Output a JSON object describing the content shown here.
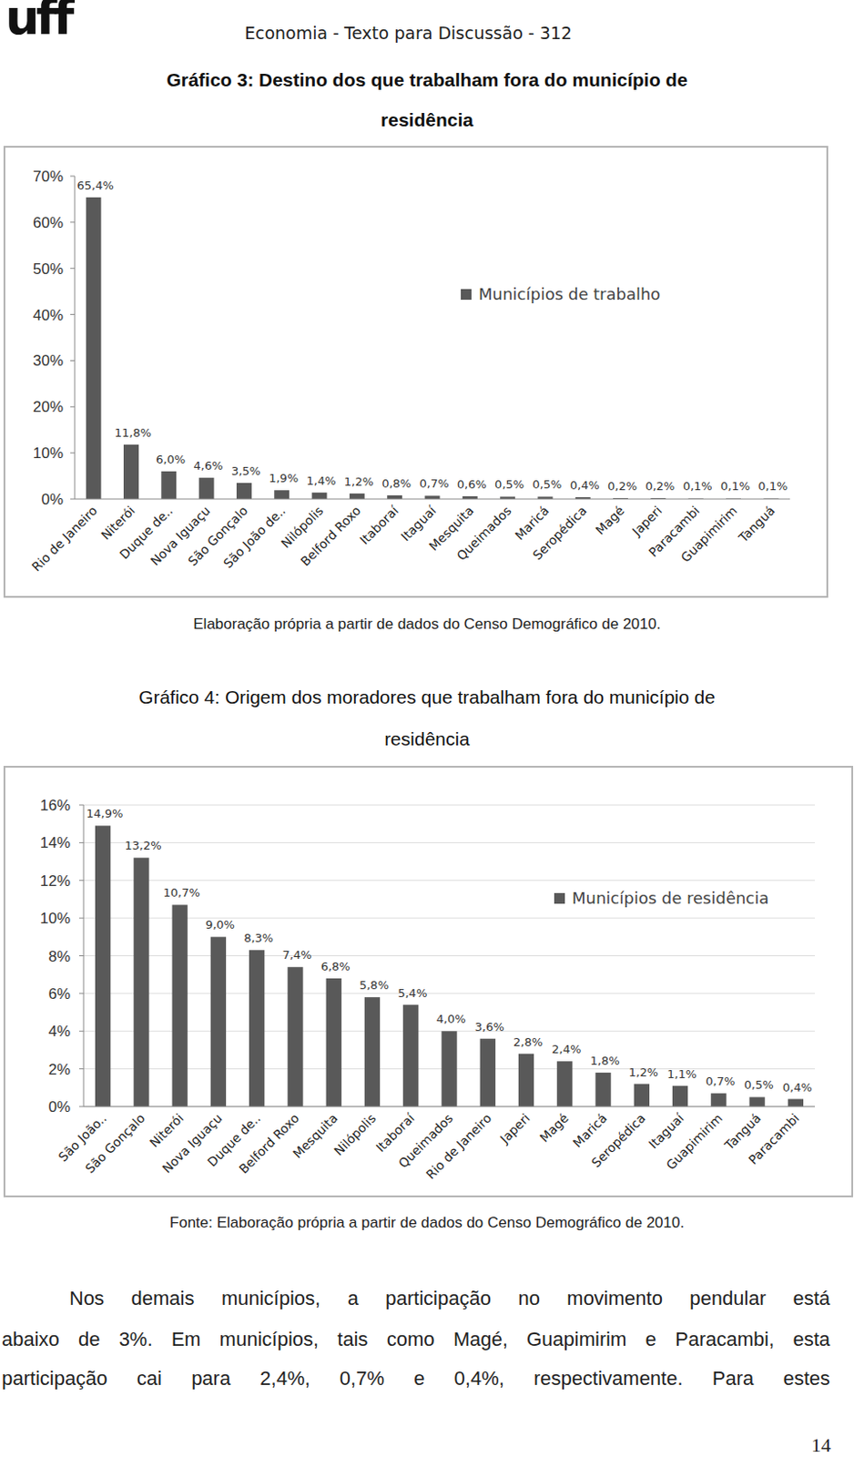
{
  "header": {
    "logo": "uff",
    "text": "Economia - Texto para Discussão - 312"
  },
  "chart_data": [
    {
      "type": "bar",
      "title": [
        "Gráfico 3: Destino dos que trabalham fora do município de",
        "residência"
      ],
      "source": "Elaboração própria a partir de dados do Censo Demográfico de 2010.",
      "categories": [
        "Rio de Janeiro",
        "Niterói",
        "Duque de..",
        "Nova Iguaçu",
        "São Gonçalo",
        "São João de..",
        "Nilópolis",
        "Belford Roxo",
        "Itaboraí",
        "Itaguaí",
        "Mesquita",
        "Queimados",
        "Maricá",
        "Seropédica",
        "Magé",
        "Japeri",
        "Paracambi",
        "Guapimirim",
        "Tanguá"
      ],
      "series": [
        {
          "name": "Municípios de trabalho",
          "color": "#595959",
          "values": [
            65.4,
            11.8,
            6.0,
            4.6,
            3.5,
            1.9,
            1.4,
            1.2,
            0.8,
            0.7,
            0.6,
            0.5,
            0.5,
            0.4,
            0.2,
            0.2,
            0.1,
            0.1,
            0.1
          ],
          "value_labels": [
            "65,4%",
            "11,8%",
            "6,0%",
            "4,6%",
            "3,5%",
            "1,9%",
            "1,4%",
            "1,2%",
            "0,8%",
            "0,7%",
            "0,6%",
            "0,5%",
            "0,5%",
            "0,4%",
            "0,2%",
            "0,2%",
            "0,1%",
            "0,1%",
            "0,1%"
          ]
        }
      ],
      "ylim": [
        0,
        70
      ],
      "yticks": [
        {
          "value": 0,
          "label": "0%"
        },
        {
          "value": 10,
          "label": "10%"
        },
        {
          "value": 20,
          "label": "20%"
        },
        {
          "value": 30,
          "label": "30%"
        },
        {
          "value": 40,
          "label": "40%"
        },
        {
          "value": 50,
          "label": "50%"
        },
        {
          "value": 60,
          "label": "60%"
        },
        {
          "value": 70,
          "label": "70%"
        }
      ],
      "grid": false,
      "legend": "right",
      "data_labels": true
    },
    {
      "type": "bar",
      "title": [
        "Gráfico 4: Origem dos moradores que trabalham fora do município de",
        "residência"
      ],
      "source": "Fonte: Elaboração própria a partir de dados do Censo Demográfico de 2010.",
      "categories": [
        "São João..",
        "São Gonçalo",
        "Niterói",
        "Nova Iguaçu",
        "Duque de..",
        "Belford Roxo",
        "Mesquita",
        "Nilópolis",
        "Itaboraí",
        "Queimados",
        "Rio de Janeiro",
        "Japeri",
        "Magé",
        "Maricá",
        "Seropédica",
        "Itaguaí",
        "Guapimirim",
        "Tanguá",
        "Paracambi"
      ],
      "series": [
        {
          "name": "Municípios de residência",
          "color": "#595959",
          "values": [
            14.9,
            13.2,
            10.7,
            9.0,
            8.3,
            7.4,
            6.8,
            5.8,
            5.4,
            4.0,
            3.6,
            2.8,
            2.4,
            1.8,
            1.2,
            1.1,
            0.7,
            0.5,
            0.4
          ],
          "value_labels": [
            "14,9%",
            "13,2%",
            "10,7%",
            "9,0%",
            "8,3%",
            "7,4%",
            "6,8%",
            "5,8%",
            "5,4%",
            "4,0%",
            "3,6%",
            "2,8%",
            "2,4%",
            "1,8%",
            "1,2%",
            "1,1%",
            "0,7%",
            "0,5%",
            "0,4%"
          ]
        }
      ],
      "ylim": [
        0,
        16
      ],
      "yticks": [
        {
          "value": 0,
          "label": "0%"
        },
        {
          "value": 2,
          "label": "2%"
        },
        {
          "value": 4,
          "label": "4%"
        },
        {
          "value": 6,
          "label": "6%"
        },
        {
          "value": 8,
          "label": "8%"
        },
        {
          "value": 10,
          "label": "10%"
        },
        {
          "value": 12,
          "label": "12%"
        },
        {
          "value": 14,
          "label": "14%"
        },
        {
          "value": 16,
          "label": "16%"
        }
      ],
      "grid": true,
      "legend": "right",
      "data_labels": true
    }
  ],
  "body": {
    "lines": [
      "Nos demais municípios, a participação no movimento pendular está",
      "abaixo de 3%. Em municípios, tais como Magé, Guapimirim e Paracambi, esta",
      "participação cai para 2,4%, 0,7% e 0,4%, respectivamente. Para estes"
    ]
  },
  "page_number": "14"
}
